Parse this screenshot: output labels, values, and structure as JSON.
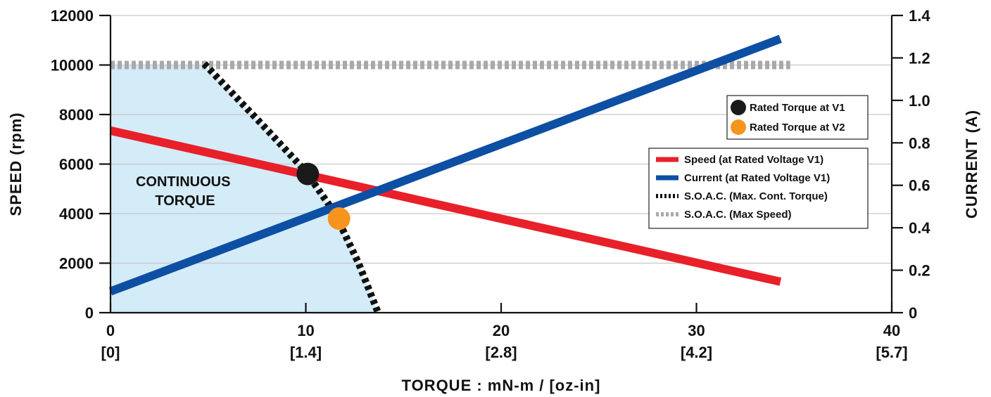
{
  "chart_data": {
    "type": "line",
    "xlabel": "TORQUE : mN-m / [oz-in]",
    "ylabel_left": "SPEED (rpm)",
    "ylabel_right": "CURRENT (A)",
    "xlim": [
      0,
      40
    ],
    "ylim_left": [
      0,
      12000
    ],
    "ylim_right": [
      0,
      1.4
    ],
    "x_ticks": [
      {
        "value": 0,
        "label": "0",
        "sublabel": "[0]"
      },
      {
        "value": 10,
        "label": "10",
        "sublabel": "[1.4]"
      },
      {
        "value": 20,
        "label": "20",
        "sublabel": "[2.8]"
      },
      {
        "value": 30,
        "label": "30",
        "sublabel": "[4.2]"
      },
      {
        "value": 40,
        "label": "40",
        "sublabel": "[5.7]"
      }
    ],
    "y_left_ticks": [
      {
        "value": 0,
        "label": "0"
      },
      {
        "value": 2000,
        "label": "2000"
      },
      {
        "value": 4000,
        "label": "4000"
      },
      {
        "value": 6000,
        "label": "6000"
      },
      {
        "value": 8000,
        "label": "8000"
      },
      {
        "value": 10000,
        "label": "10000"
      },
      {
        "value": 12000,
        "label": "12000"
      }
    ],
    "y_right_ticks": [
      {
        "value": 0,
        "label": "0"
      },
      {
        "value": 0.2,
        "label": "0.2"
      },
      {
        "value": 0.4,
        "label": "0.4"
      },
      {
        "value": 0.6,
        "label": "0.6"
      },
      {
        "value": 0.8,
        "label": "0.8"
      },
      {
        "value": 1.0,
        "label": "1.0"
      },
      {
        "value": 1.2,
        "label": "1.2"
      },
      {
        "value": 1.4,
        "label": "1.4"
      }
    ],
    "grid": "horizontal",
    "series": [
      {
        "name": "Speed (at Rated Voltage V1)",
        "axis": "left",
        "color": "#e8202a",
        "style": "solid",
        "points": [
          [
            0,
            7350
          ],
          [
            34.3,
            1250
          ]
        ]
      },
      {
        "name": "Current (at Rated Voltage V1)",
        "axis": "right",
        "color": "#0d4fa3",
        "style": "solid",
        "points": [
          [
            0,
            0.1
          ],
          [
            34.3,
            1.29
          ]
        ]
      },
      {
        "name": "S.O.A.C. (Max. Cont. Torque)",
        "axis": "left",
        "color": "#111111",
        "style": "dashed",
        "points": [
          [
            4.8,
            10050
          ],
          [
            8,
            7400
          ],
          [
            10,
            5700
          ],
          [
            11.5,
            4000
          ],
          [
            12.7,
            2000
          ],
          [
            13.7,
            0
          ]
        ]
      },
      {
        "name": "S.O.A.C. (Max Speed)",
        "axis": "left",
        "color": "#a7a9ac",
        "style": "dashed",
        "points": [
          [
            0,
            10000
          ],
          [
            34.8,
            10000
          ]
        ]
      }
    ],
    "markers": [
      {
        "name": "Rated Torque at V1",
        "x": 10.1,
        "y": 5600,
        "color": "#1a1a1a"
      },
      {
        "name": "Rated Torque at V2",
        "x": 11.7,
        "y": 3800,
        "color": "#f7941d"
      }
    ],
    "region": {
      "label_lines": [
        "CONTINUOUS",
        "TORQUE"
      ],
      "color": "#d4ebf8",
      "boundary": [
        [
          0,
          10000
        ],
        [
          4.8,
          10000
        ],
        [
          8,
          7400
        ],
        [
          10,
          5700
        ],
        [
          11.5,
          4000
        ],
        [
          12.7,
          2000
        ],
        [
          13.7,
          0
        ]
      ]
    },
    "legend_markers_placement": "upper-right",
    "legend_lines_placement": "right"
  }
}
